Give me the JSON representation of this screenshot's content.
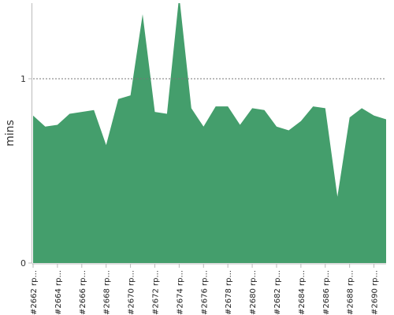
{
  "chart_data": {
    "type": "area",
    "title": "",
    "xlabel": "",
    "ylabel": "mins",
    "ylim": [
      0,
      1.4
    ],
    "yticks": [
      "0",
      "1"
    ],
    "reference_line": 1,
    "grid": false,
    "color": "#449e6c",
    "tick_labels": [
      "#2662 rp...",
      "#2664 rp...",
      "#2666 rp...",
      "#2668 rp...",
      "#2670 rp...",
      "#2672 rp...",
      "#2674 rp...",
      "#2676 rp...",
      "#2678 rp...",
      "#2680 rp...",
      "#2682 rp...",
      "#2684 rp...",
      "#2686 rp...",
      "#2688 rp...",
      "#2690 rp..."
    ],
    "x": [
      2662,
      2663,
      2664,
      2665,
      2666,
      2667,
      2668,
      2669,
      2670,
      2671,
      2672,
      2673,
      2674,
      2675,
      2676,
      2677,
      2678,
      2679,
      2680,
      2681,
      2682,
      2683,
      2684,
      2685,
      2686,
      2687,
      2688,
      2689,
      2690,
      2691
    ],
    "values": [
      0.8,
      0.74,
      0.75,
      0.81,
      0.82,
      0.83,
      0.64,
      0.89,
      0.91,
      1.35,
      0.82,
      0.81,
      1.45,
      0.84,
      0.74,
      0.85,
      0.85,
      0.75,
      0.84,
      0.83,
      0.74,
      0.72,
      0.77,
      0.85,
      0.84,
      0.36,
      0.79,
      0.84,
      0.8,
      0.78
    ]
  }
}
